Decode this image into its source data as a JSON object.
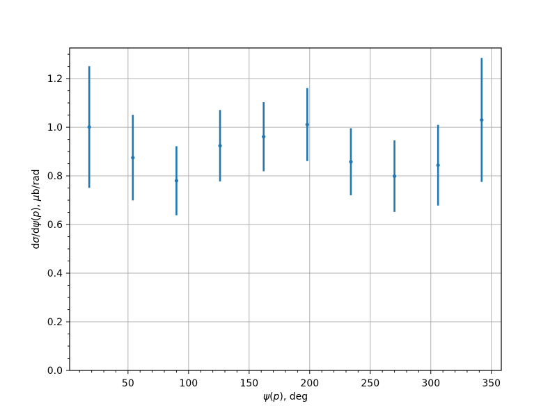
{
  "chart_data": {
    "type": "scatter",
    "subtype": "errorbar",
    "x": [
      18,
      54,
      90,
      126,
      162,
      198,
      234,
      270,
      306,
      342
    ],
    "y": [
      1.001,
      0.875,
      0.78,
      0.924,
      0.961,
      1.011,
      0.858,
      0.799,
      0.844,
      1.03
    ],
    "yerr": [
      0.25,
      0.176,
      0.142,
      0.147,
      0.142,
      0.15,
      0.138,
      0.147,
      0.166,
      0.255
    ],
    "title": "",
    "xlabel": "ψ(p), deg",
    "ylabel": "dσ/dψ(p), μb/rad",
    "xlim": [
      1.8,
      358.2
    ],
    "ylim": [
      0,
      1.326
    ],
    "xticks": [
      50,
      100,
      150,
      200,
      250,
      300,
      350
    ],
    "xtick_labels": [
      "50",
      "100",
      "150",
      "200",
      "250",
      "300",
      "350"
    ],
    "yticks": [
      0,
      0.2,
      0.4,
      0.6,
      0.8,
      1.0,
      1.2
    ],
    "ytick_labels": [
      "0.0",
      "0.2",
      "0.4",
      "0.6",
      "0.8",
      "1.0",
      "1.2"
    ],
    "x_minor_step": 10,
    "y_minor_step": 0.05,
    "grid": true,
    "legend": false,
    "series_color": "#1f77b4",
    "grid_color": "#b0b0b0",
    "axis_color": "#000000",
    "background_color": "#ffffff"
  }
}
